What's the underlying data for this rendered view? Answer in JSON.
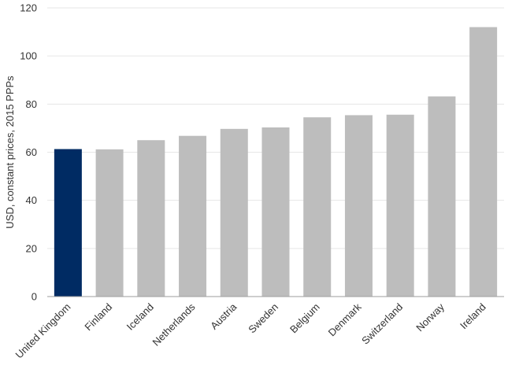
{
  "chart_data": {
    "type": "bar",
    "title": "",
    "xlabel": "",
    "ylabel": "USD, constant prices, 2015 PPPs",
    "categories": [
      "United Kingdom",
      "Finland",
      "Iceland",
      "Netherlands",
      "Austria",
      "Sweden",
      "Belgium",
      "Denmark",
      "Switzerland",
      "Norway",
      "Ireland"
    ],
    "values": [
      61.3,
      61.2,
      65.0,
      66.8,
      69.7,
      70.3,
      74.5,
      75.4,
      75.6,
      83.2,
      112.0
    ],
    "ylim": [
      0,
      120
    ],
    "yticks": [
      "0",
      "20",
      "40",
      "60",
      "80",
      "100",
      "120"
    ],
    "grid": true,
    "legend": "none",
    "colors": {
      "highlight": "#002b63",
      "default": "#bdbdbd",
      "grid": "#e6e6e6",
      "axis": "#9e9e9e",
      "text": "#333333"
    },
    "highlight_index": 0
  }
}
